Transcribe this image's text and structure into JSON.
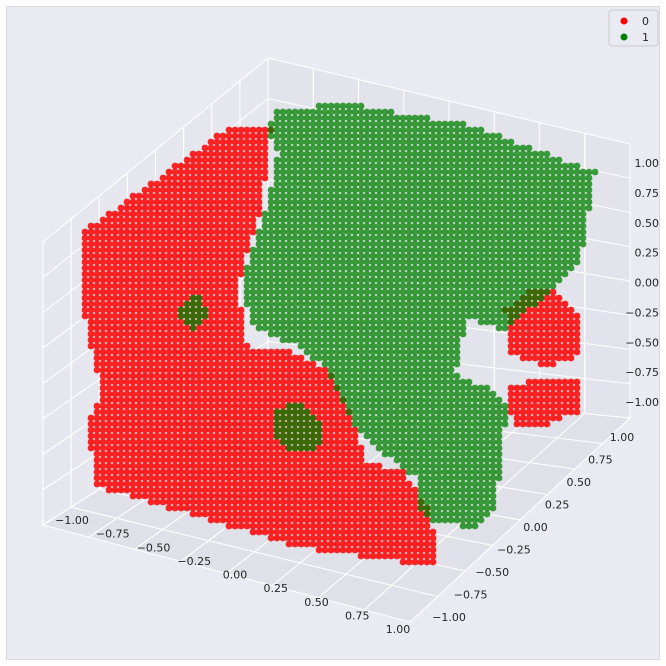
{
  "chart_data": {
    "type": "scatter",
    "projection": "3d",
    "background_color": "#eaeaf2",
    "grid": true,
    "grid_color": "#ffffff",
    "legend_position": "top-right",
    "xlim": [
      -1.0,
      1.0
    ],
    "ylim": [
      -1.0,
      1.0
    ],
    "zlim": [
      -1.0,
      1.0
    ],
    "x_ticks": [
      "−1.00",
      "−0.75",
      "−0.50",
      "−0.25",
      "0.00",
      "0.25",
      "0.50",
      "0.75",
      "1.00"
    ],
    "y_ticks": [
      "−1.00",
      "−0.75",
      "−0.50",
      "−0.25",
      "0.00",
      "0.25",
      "0.50",
      "0.75",
      "1.00"
    ],
    "z_ticks": [
      "−1.00",
      "−0.75",
      "−0.50",
      "−0.25",
      "0.00",
      "0.25",
      "0.50",
      "0.75",
      "1.00"
    ],
    "series": [
      {
        "name": "0",
        "color": "#ff0000",
        "legend_label": "0"
      },
      {
        "name": "1",
        "color": "#008000",
        "legend_label": "1"
      }
    ]
  }
}
